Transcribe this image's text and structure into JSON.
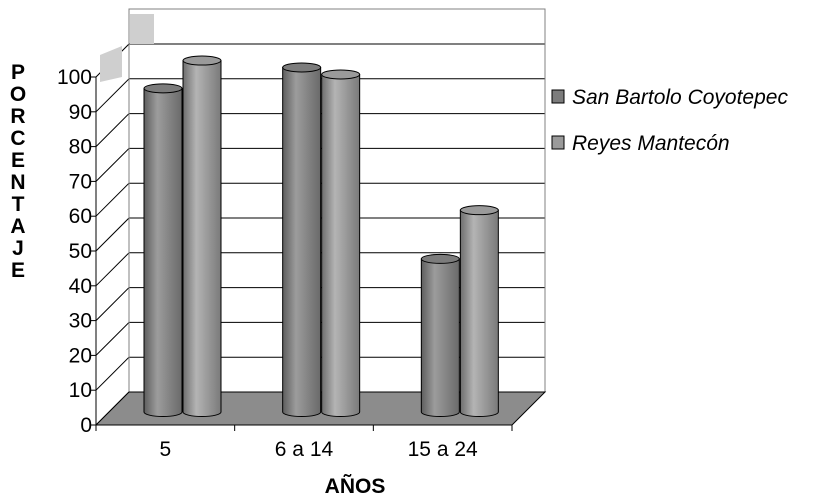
{
  "chart_data": {
    "type": "bar",
    "title": "",
    "xlabel": "AÑOS",
    "ylabel": "PORCENTAJE",
    "categories": [
      "5",
      "6 a 14",
      "15 a 24"
    ],
    "series": [
      {
        "name": "San Bartolo Coyotepec",
        "values": [
          93,
          99,
          44
        ],
        "color": "#8a8a8a"
      },
      {
        "name": "Reyes Mantecón",
        "values": [
          101,
          97,
          58
        ],
        "color": "#9a9a9a"
      }
    ],
    "ylim": [
      0,
      100
    ],
    "yticks": [
      "0",
      "10",
      "20",
      "30",
      "40",
      "50",
      "60",
      "70",
      "80",
      "90",
      "100"
    ],
    "grid": true,
    "legend_position": "right",
    "style": "3d-cylinder"
  }
}
